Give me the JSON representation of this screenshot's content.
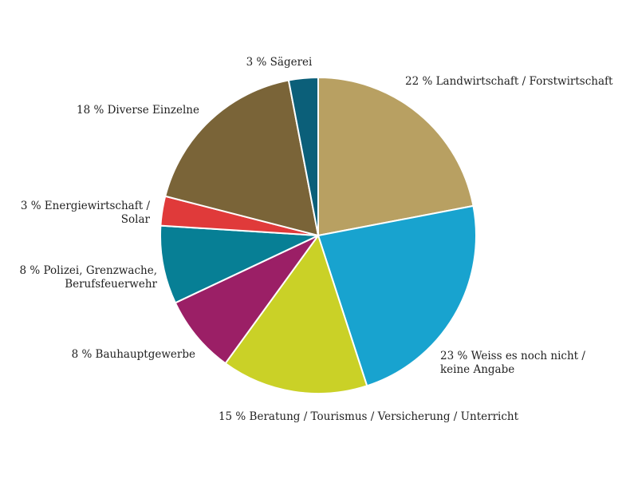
{
  "chart_data": {
    "type": "pie",
    "title": "",
    "slices": [
      {
        "label_lines": [
          "22 % Landwirtschaft / Forstwirtschaft"
        ],
        "value": 22,
        "color": "#b8a062"
      },
      {
        "label_lines": [
          "23 % Weiss es noch nicht /",
          "keine Angabe"
        ],
        "value": 23,
        "color": "#18a3cf"
      },
      {
        "label_lines": [
          "15 % Beratung / Tourismus / Versicherung / Unterricht"
        ],
        "value": 15,
        "color": "#cad127"
      },
      {
        "label_lines": [
          "8 % Bauhauptgewerbe"
        ],
        "value": 8,
        "color": "#9b1f66"
      },
      {
        "label_lines": [
          "8 % Polizei, Grenzwache,",
          "Berufsfeuerwehr"
        ],
        "value": 8,
        "color": "#077f95"
      },
      {
        "label_lines": [
          "3 % Energiewirtschaft /",
          "Solar"
        ],
        "value": 3,
        "color": "#e03a3a"
      },
      {
        "label_lines": [
          "18 % Diverse Einzelne"
        ],
        "value": 18,
        "color": "#7a6438"
      },
      {
        "label_lines": [
          "3 % Sägerei"
        ],
        "value": 3,
        "color": "#0b5f79"
      }
    ],
    "start": "12 o'clock",
    "direction": "clockwise",
    "legend": "none"
  }
}
